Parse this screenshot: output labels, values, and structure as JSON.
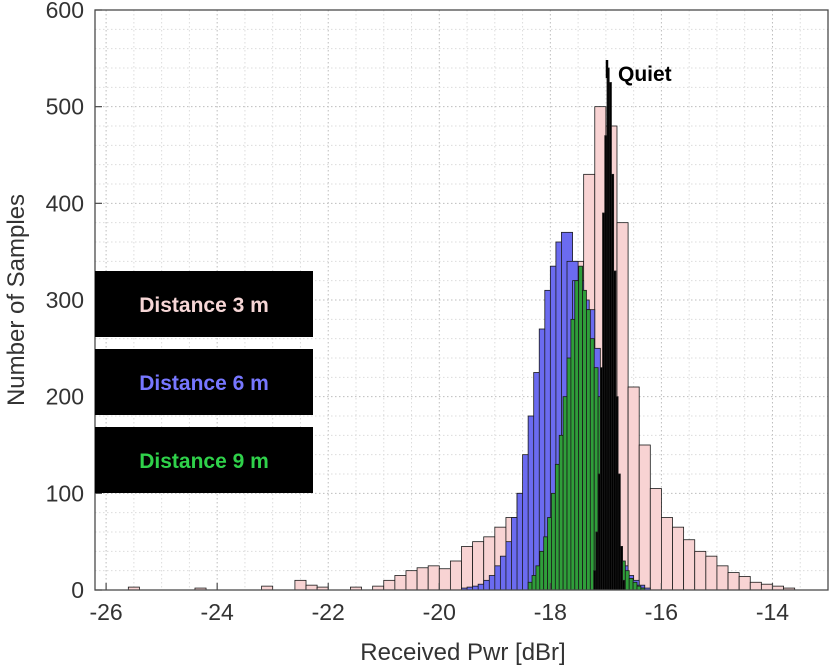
{
  "chart_data": {
    "type": "bar",
    "subtype": "overlaid-histogram",
    "xlabel": "Received Pwr [dBr]",
    "ylabel": "Number of Samples",
    "xlim": [
      -26.2,
      -13.0
    ],
    "ylim": [
      0,
      600
    ],
    "bin_width": 0.2,
    "grid": "dotted major and minor",
    "xticks": [
      -26,
      -24,
      -22,
      -20,
      -18,
      -16,
      -14
    ],
    "xtick_labels": [
      "-26",
      "-24",
      "-22",
      "-20",
      "-18",
      "-16",
      "-14"
    ],
    "yticks": [
      0,
      100,
      200,
      300,
      400,
      500,
      600
    ],
    "ytick_labels": [
      "0",
      "100",
      "200",
      "300",
      "400",
      "500",
      "600"
    ],
    "series": [
      {
        "name": "Distance 3 m",
        "legend": "Distance 3 m",
        "color": "#f8d3d3",
        "text_color": "#f6d6d6",
        "bin_starts": [
          -25.6,
          -24.4,
          -23.2,
          -22.6,
          -22.4,
          -22.2,
          -21.6,
          -21.2,
          -21.0,
          -20.8,
          -20.6,
          -20.4,
          -20.2,
          -20.0,
          -19.8,
          -19.6,
          -19.4,
          -19.2,
          -19.0,
          -18.8,
          -18.6,
          -18.4,
          -18.2,
          -18.0,
          -17.8,
          -17.6,
          -17.4,
          -17.2,
          -17.0,
          -16.8,
          -16.6,
          -16.4,
          -16.2,
          -16.0,
          -15.8,
          -15.6,
          -15.4,
          -15.2,
          -15.0,
          -14.8,
          -14.6,
          -14.4,
          -14.2,
          -14.0,
          -13.8
        ],
        "values": [
          3,
          2,
          4,
          10,
          5,
          3,
          3,
          4,
          10,
          15,
          20,
          23,
          25,
          22,
          30,
          45,
          50,
          55,
          65,
          75,
          100,
          120,
          150,
          200,
          260,
          340,
          430,
          500,
          480,
          380,
          210,
          150,
          105,
          75,
          65,
          52,
          40,
          35,
          25,
          18,
          14,
          8,
          6,
          4,
          2
        ]
      },
      {
        "name": "Distance 6 m",
        "legend": "Distance 6 m",
        "color": "#6b6bf0",
        "text_color": "#7777ff",
        "bin_starts": [
          -19.6,
          -19.5,
          -19.4,
          -19.3,
          -19.2,
          -19.1,
          -19.0,
          -18.9,
          -18.8,
          -18.7,
          -18.6,
          -18.5,
          -18.4,
          -18.3,
          -18.2,
          -18.1,
          -18.0,
          -17.9,
          -17.8,
          -17.7,
          -17.6,
          -17.5,
          -17.4,
          -17.3,
          -17.2,
          -17.1,
          -17.0,
          -16.9,
          -16.8,
          -16.7,
          -16.6,
          -16.5,
          -16.4
        ],
        "values": [
          2,
          3,
          4,
          6,
          10,
          15,
          25,
          35,
          50,
          75,
          100,
          140,
          180,
          225,
          270,
          310,
          335,
          360,
          370,
          340,
          320,
          300,
          290,
          250,
          190,
          130,
          80,
          45,
          25,
          15,
          10,
          5,
          2
        ]
      },
      {
        "name": "Distance 9 m",
        "legend": "Distance 9 m",
        "color": "#2f9e3a",
        "text_color": "#2fd14a",
        "bin_starts": [
          -18.4,
          -18.33,
          -18.26,
          -18.19,
          -18.12,
          -18.05,
          -17.98,
          -17.91,
          -17.84,
          -17.77,
          -17.7,
          -17.63,
          -17.56,
          -17.49,
          -17.42,
          -17.35,
          -17.28,
          -17.21,
          -17.14,
          -17.07,
          -17.0,
          -16.93,
          -16.86,
          -16.79,
          -16.72,
          -16.65,
          -16.58,
          -16.51,
          -16.44,
          -16.37
        ],
        "bin_width": 0.07,
        "values": [
          8,
          15,
          25,
          40,
          55,
          75,
          100,
          130,
          160,
          200,
          240,
          280,
          320,
          335,
          310,
          290,
          260,
          230,
          200,
          170,
          130,
          100,
          70,
          45,
          30,
          20,
          12,
          8,
          4,
          2
        ]
      },
      {
        "name": "Quiet",
        "legend": "Quiet",
        "color": "#000000",
        "text_color": "#000000",
        "bin_starts": [
          -17.22,
          -17.18,
          -17.14,
          -17.1,
          -17.06,
          -17.02,
          -16.98,
          -16.94,
          -16.9,
          -16.86,
          -16.82,
          -16.78,
          -16.74,
          -16.7
        ],
        "bin_width": 0.04,
        "values": [
          20,
          60,
          120,
          230,
          390,
          470,
          540,
          525,
          430,
          330,
          200,
          120,
          45,
          10
        ]
      }
    ],
    "legend_entries": [
      {
        "label": "Distance 3 m",
        "color": "#f6d6d6"
      },
      {
        "label": "Distance 6 m",
        "color": "#7777ff"
      },
      {
        "label": "Distance 9 m",
        "color": "#2fd14a"
      }
    ],
    "annotation": {
      "text": "Quiet",
      "x": -16.7,
      "y": 540
    }
  }
}
